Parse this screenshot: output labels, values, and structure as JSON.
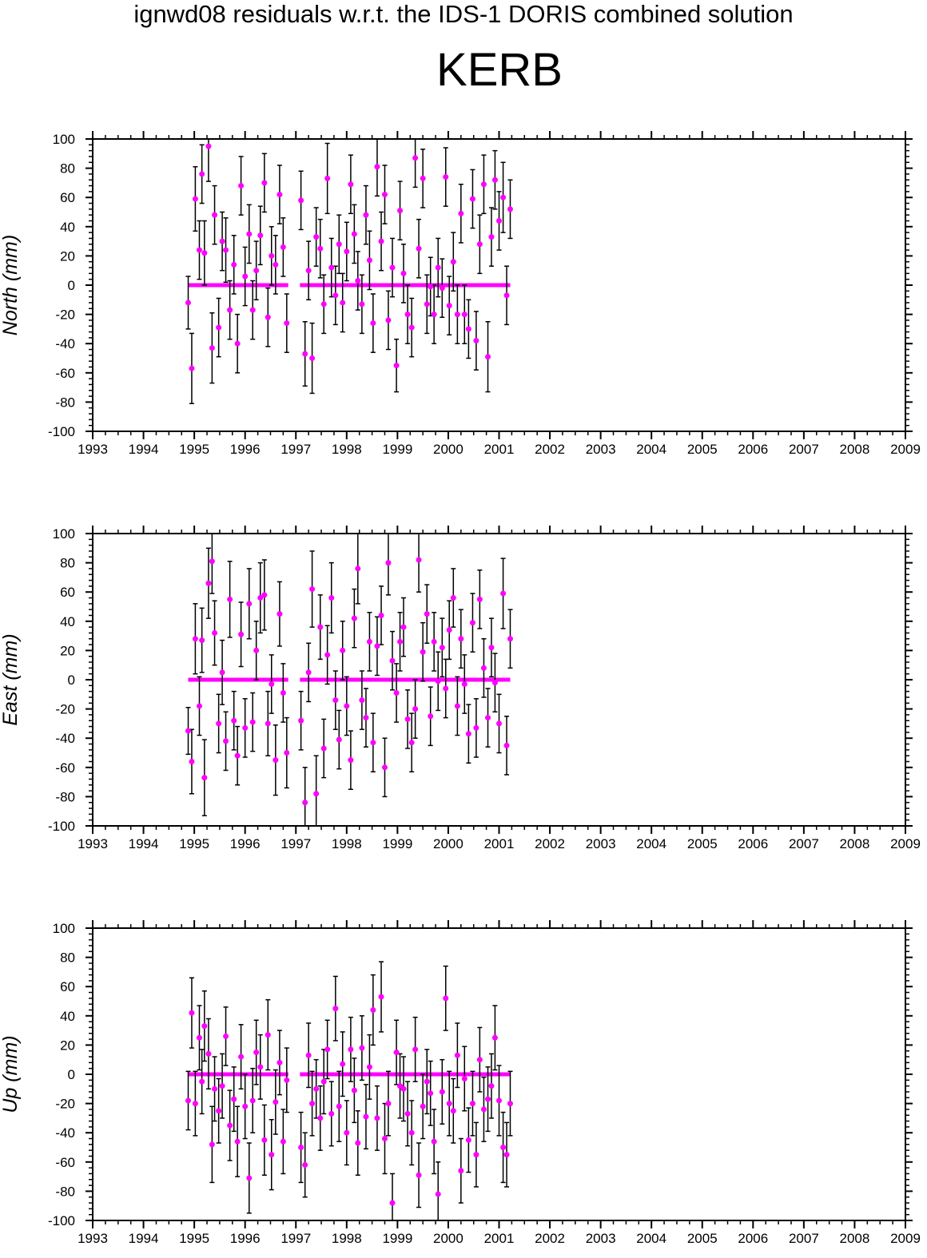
{
  "header": {
    "title": "ignwd08 residuals w.r.t. the IDS-1 DORIS combined solution",
    "station": "KERB"
  },
  "colors": {
    "marker": "#ff00ff",
    "errorbar": "#000000",
    "axes": "#000000"
  },
  "chart_data": [
    {
      "type": "scatter",
      "ylabel": "North (mm)",
      "xlim": [
        1993,
        2009
      ],
      "ylim": [
        -100,
        100
      ],
      "x_ticks": [
        "1993",
        "1994",
        "1995",
        "1996",
        "1997",
        "1998",
        "1999",
        "2000",
        "2001",
        "2002",
        "2003",
        "2004",
        "2005",
        "2006",
        "2007",
        "2008",
        "2009"
      ],
      "y_ticks": [
        "100",
        "80",
        "60",
        "40",
        "20",
        "0",
        "-20",
        "-40",
        "-60",
        "-80",
        "-100"
      ],
      "error_bars": true,
      "series": [
        {
          "x": [
            1994.88,
            1994.95,
            1995.02,
            1995.1,
            1995.15,
            1995.2,
            1995.28,
            1995.35,
            1995.4,
            1995.48,
            1995.55,
            1995.62,
            1995.7,
            1995.78,
            1995.85,
            1995.92,
            1996.0,
            1996.08,
            1996.15,
            1996.22,
            1996.3,
            1996.38,
            1996.45,
            1996.52,
            1996.6,
            1996.68,
            1996.75,
            1996.82,
            1997.1,
            1997.18,
            1997.25,
            1997.32,
            1997.4,
            1997.48,
            1997.55,
            1997.62,
            1997.7,
            1997.78,
            1997.85,
            1997.92,
            1998.0,
            1998.08,
            1998.15,
            1998.22,
            1998.3,
            1998.38,
            1998.45,
            1998.52,
            1998.6,
            1998.68,
            1998.75,
            1998.82,
            1998.9,
            1998.98,
            1999.05,
            1999.12,
            1999.2,
            1999.28,
            1999.35,
            1999.42,
            1999.5,
            1999.58,
            1999.65,
            1999.72,
            1999.8,
            1999.88,
            1999.95,
            2000.02,
            2000.1,
            2000.18,
            2000.25,
            2000.32,
            2000.4,
            2000.48,
            2000.55,
            2000.62,
            2000.7,
            2000.78,
            2000.85,
            2000.92,
            2001.0,
            2001.08,
            2001.15,
            2001.22
          ],
          "y": [
            -12,
            -57,
            59,
            24,
            76,
            22,
            95,
            -43,
            48,
            -29,
            30,
            24,
            -17,
            14,
            -40,
            68,
            6,
            35,
            -17,
            10,
            34,
            70,
            -22,
            20,
            14,
            62,
            26,
            -26,
            58,
            -47,
            10,
            -50,
            33,
            25,
            -13,
            73,
            12,
            -7,
            28,
            -12,
            23,
            69,
            35,
            3,
            -13,
            48,
            17,
            -26,
            81,
            30,
            62,
            -24,
            12,
            -55,
            51,
            8,
            -20,
            -29,
            87,
            25,
            73,
            -13,
            -1,
            -20,
            12,
            -2,
            74,
            -14,
            16,
            -20,
            49,
            -20,
            -30,
            59,
            -38,
            28,
            69,
            -49,
            33,
            72,
            44,
            60,
            -7,
            52
          ],
          "err": [
            18,
            24,
            22,
            20,
            20,
            22,
            24,
            24,
            20,
            20,
            20,
            22,
            20,
            20,
            20,
            20,
            20,
            20,
            20,
            20,
            20,
            20,
            20,
            20,
            20,
            20,
            20,
            20,
            20,
            22,
            20,
            24,
            20,
            20,
            20,
            24,
            20,
            20,
            20,
            20,
            20,
            20,
            20,
            20,
            20,
            20,
            20,
            20,
            20,
            20,
            20,
            20,
            20,
            18,
            20,
            20,
            20,
            20,
            20,
            20,
            20,
            20,
            20,
            20,
            20,
            20,
            20,
            20,
            20,
            20,
            20,
            20,
            20,
            20,
            20,
            20,
            20,
            24,
            20,
            20,
            20,
            24,
            20,
            20
          ]
        }
      ]
    },
    {
      "type": "scatter",
      "ylabel": "East (mm)",
      "xlim": [
        1993,
        2009
      ],
      "ylim": [
        -100,
        100
      ],
      "x_ticks": [
        "1993",
        "1994",
        "1995",
        "1996",
        "1997",
        "1998",
        "1999",
        "2000",
        "2001",
        "2002",
        "2003",
        "2004",
        "2005",
        "2006",
        "2007",
        "2008",
        "2009"
      ],
      "y_ticks": [
        "100",
        "80",
        "60",
        "40",
        "20",
        "0",
        "-20",
        "-40",
        "-60",
        "-80",
        "-100"
      ],
      "error_bars": true,
      "series": [
        {
          "x": [
            1994.88,
            1994.95,
            1995.02,
            1995.1,
            1995.15,
            1995.2,
            1995.28,
            1995.35,
            1995.4,
            1995.48,
            1995.55,
            1995.62,
            1995.7,
            1995.78,
            1995.85,
            1995.92,
            1996.0,
            1996.08,
            1996.15,
            1996.22,
            1996.3,
            1996.38,
            1996.45,
            1996.52,
            1996.6,
            1996.68,
            1996.75,
            1996.82,
            1997.1,
            1997.18,
            1997.25,
            1997.32,
            1997.4,
            1997.48,
            1997.55,
            1997.62,
            1997.7,
            1997.78,
            1997.85,
            1997.92,
            1998.0,
            1998.08,
            1998.15,
            1998.22,
            1998.3,
            1998.38,
            1998.45,
            1998.52,
            1998.6,
            1998.68,
            1998.75,
            1998.82,
            1998.9,
            1998.98,
            1999.05,
            1999.12,
            1999.2,
            1999.28,
            1999.35,
            1999.42,
            1999.5,
            1999.58,
            1999.65,
            1999.72,
            1999.8,
            1999.88,
            1999.95,
            2000.02,
            2000.1,
            2000.18,
            2000.25,
            2000.32,
            2000.4,
            2000.48,
            2000.55,
            2000.62,
            2000.7,
            2000.78,
            2000.85,
            2000.92,
            2001.0,
            2001.08,
            2001.15,
            2001.22
          ],
          "y": [
            -35,
            -56,
            28,
            -18,
            27,
            -67,
            66,
            81,
            32,
            -30,
            5,
            -42,
            55,
            -28,
            -52,
            31,
            -33,
            52,
            -29,
            20,
            56,
            58,
            -30,
            -3,
            -55,
            45,
            -9,
            -50,
            -28,
            -84,
            5,
            62,
            -78,
            36,
            -47,
            17,
            56,
            -14,
            -41,
            20,
            -18,
            -55,
            42,
            76,
            -14,
            -26,
            26,
            -43,
            23,
            44,
            -60,
            80,
            13,
            -9,
            26,
            36,
            -27,
            -43,
            -20,
            82,
            19,
            45,
            -25,
            26,
            -1,
            22,
            -6,
            34,
            56,
            -18,
            28,
            -3,
            -37,
            39,
            -33,
            55,
            8,
            -26,
            22,
            -2,
            -30,
            59,
            -45,
            28
          ],
          "err": [
            16,
            22,
            24,
            20,
            22,
            26,
            24,
            22,
            22,
            20,
            22,
            20,
            26,
            20,
            20,
            22,
            20,
            24,
            20,
            20,
            24,
            24,
            22,
            20,
            24,
            22,
            20,
            24,
            20,
            24,
            20,
            26,
            26,
            22,
            20,
            20,
            24,
            20,
            20,
            20,
            20,
            20,
            20,
            24,
            20,
            20,
            20,
            20,
            20,
            20,
            20,
            22,
            20,
            20,
            20,
            20,
            20,
            20,
            20,
            22,
            20,
            20,
            20,
            20,
            20,
            20,
            20,
            20,
            20,
            20,
            20,
            20,
            20,
            20,
            20,
            20,
            20,
            20,
            20,
            20,
            20,
            24,
            20,
            20
          ]
        }
      ]
    },
    {
      "type": "scatter",
      "ylabel": "Up (mm)",
      "xlim": [
        1993,
        2009
      ],
      "ylim": [
        -100,
        100
      ],
      "x_ticks": [
        "1993",
        "1994",
        "1995",
        "1996",
        "1997",
        "1998",
        "1999",
        "2000",
        "2001",
        "2002",
        "2003",
        "2004",
        "2005",
        "2006",
        "2007",
        "2008",
        "2009"
      ],
      "y_ticks": [
        "100",
        "80",
        "60",
        "40",
        "20",
        "0",
        "-20",
        "-40",
        "-60",
        "-80",
        "-100"
      ],
      "error_bars": true,
      "series": [
        {
          "x": [
            1994.88,
            1994.95,
            1995.02,
            1995.1,
            1995.15,
            1995.2,
            1995.28,
            1995.35,
            1995.4,
            1995.48,
            1995.55,
            1995.62,
            1995.7,
            1995.78,
            1995.85,
            1995.92,
            1996.0,
            1996.08,
            1996.15,
            1996.22,
            1996.3,
            1996.38,
            1996.45,
            1996.52,
            1996.6,
            1996.68,
            1996.75,
            1996.82,
            1997.1,
            1997.18,
            1997.25,
            1997.32,
            1997.4,
            1997.48,
            1997.55,
            1997.62,
            1997.7,
            1997.78,
            1997.85,
            1997.92,
            1998.0,
            1998.08,
            1998.15,
            1998.22,
            1998.3,
            1998.38,
            1998.45,
            1998.52,
            1998.6,
            1998.68,
            1998.75,
            1998.82,
            1998.9,
            1998.98,
            1999.05,
            1999.12,
            1999.2,
            1999.28,
            1999.35,
            1999.42,
            1999.5,
            1999.58,
            1999.65,
            1999.72,
            1999.8,
            1999.88,
            1999.95,
            2000.02,
            2000.1,
            2000.18,
            2000.25,
            2000.32,
            2000.4,
            2000.48,
            2000.55,
            2000.62,
            2000.7,
            2000.78,
            2000.85,
            2000.92,
            2001.0,
            2001.08,
            2001.15,
            2001.22
          ],
          "y": [
            -18,
            42,
            -20,
            25,
            -5,
            33,
            14,
            -48,
            -10,
            -25,
            -8,
            26,
            -35,
            -17,
            -46,
            12,
            -22,
            -71,
            -18,
            15,
            5,
            -45,
            27,
            -55,
            -19,
            8,
            -46,
            -4,
            -50,
            -62,
            13,
            -20,
            -10,
            -30,
            -5,
            17,
            -27,
            45,
            -22,
            7,
            -40,
            17,
            -11,
            -47,
            18,
            -29,
            5,
            44,
            -30,
            53,
            -44,
            -20,
            -88,
            15,
            -8,
            -10,
            -27,
            -40,
            17,
            -69,
            -22,
            -5,
            -13,
            -46,
            -82,
            -12,
            52,
            -20,
            -25,
            13,
            -66,
            -3,
            -45,
            -20,
            -55,
            10,
            -24,
            -17,
            -8,
            25,
            -18,
            -50,
            -55,
            -20
          ],
          "err": [
            20,
            24,
            22,
            22,
            22,
            24,
            24,
            26,
            22,
            22,
            22,
            20,
            24,
            22,
            24,
            22,
            22,
            24,
            22,
            22,
            22,
            24,
            24,
            24,
            22,
            22,
            22,
            22,
            24,
            22,
            22,
            22,
            20,
            22,
            22,
            20,
            22,
            22,
            24,
            22,
            22,
            22,
            22,
            22,
            22,
            22,
            22,
            24,
            22,
            24,
            24,
            22,
            20,
            22,
            22,
            22,
            22,
            22,
            22,
            22,
            22,
            22,
            22,
            22,
            22,
            22,
            22,
            22,
            22,
            22,
            22,
            22,
            22,
            22,
            22,
            22,
            22,
            22,
            22,
            22,
            24,
            24,
            22,
            22
          ]
        }
      ]
    }
  ]
}
